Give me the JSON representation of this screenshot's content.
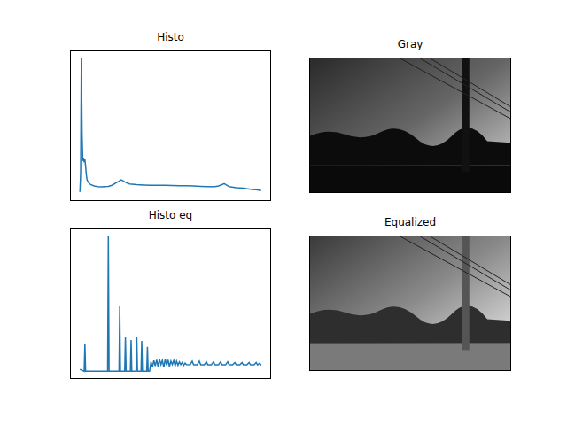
{
  "chart_data": [
    {
      "type": "line",
      "title": "Histo",
      "color": "#1f77b4",
      "tick_labels": false,
      "xlim": [
        -12.75,
        267.75
      ],
      "ylim": [
        -500,
        10500
      ],
      "xticks": [],
      "yticks": [],
      "x": [
        0,
        1,
        2,
        3,
        4,
        5,
        6,
        7,
        8,
        9,
        10,
        12,
        15,
        20,
        25,
        30,
        35,
        40,
        45,
        50,
        55,
        58,
        60,
        63,
        66,
        70,
        80,
        90,
        100,
        110,
        120,
        130,
        140,
        150,
        160,
        170,
        180,
        190,
        195,
        200,
        203,
        206,
        210,
        220,
        230,
        240,
        250,
        255
      ],
      "values": [
        100,
        1500,
        10000,
        4500,
        2400,
        2600,
        2300,
        2500,
        2000,
        1400,
        1000,
        800,
        650,
        550,
        500,
        480,
        500,
        520,
        600,
        750,
        900,
        1000,
        950,
        850,
        780,
        700,
        650,
        620,
        600,
        600,
        590,
        580,
        570,
        560,
        540,
        520,
        500,
        500,
        550,
        650,
        720,
        620,
        500,
        420,
        380,
        300,
        250,
        200
      ]
    },
    {
      "type": "image",
      "title": "Gray"
    },
    {
      "type": "line",
      "title": "Histo eq",
      "color": "#1f77b4",
      "tick_labels": false,
      "xlim": [
        -12.75,
        267.75
      ],
      "ylim": [
        -500,
        10500
      ],
      "xticks": [],
      "yticks": [],
      "x": [
        0,
        6,
        7,
        8,
        39,
        40,
        41,
        55,
        56,
        57,
        63,
        64,
        65,
        71,
        72,
        73,
        79,
        80,
        81,
        86,
        87,
        88,
        94,
        95,
        96,
        98,
        100,
        102,
        104,
        106,
        108,
        110,
        112,
        114,
        116,
        118,
        120,
        122,
        124,
        126,
        128,
        130,
        132,
        134,
        136,
        138,
        140,
        142,
        144,
        146,
        148,
        150,
        155,
        158,
        160,
        165,
        168,
        170,
        175,
        178,
        180,
        185,
        188,
        190,
        195,
        198,
        200,
        205,
        208,
        210,
        215,
        218,
        220,
        225,
        228,
        230,
        235,
        238,
        240,
        245,
        248,
        250,
        253,
        255
      ],
      "values": [
        150,
        0,
        2060,
        0,
        0,
        10000,
        0,
        0,
        4810,
        0,
        0,
        2510,
        0,
        0,
        2320,
        0,
        0,
        2510,
        0,
        0,
        2250,
        0,
        0,
        1800,
        0,
        0,
        700,
        300,
        800,
        400,
        850,
        350,
        900,
        500,
        800,
        300,
        900,
        450,
        850,
        350,
        750,
        500,
        800,
        400,
        750,
        450,
        700,
        500,
        650,
        450,
        600,
        500,
        480,
        750,
        480,
        480,
        750,
        480,
        480,
        700,
        480,
        480,
        700,
        480,
        480,
        700,
        480,
        480,
        700,
        480,
        480,
        650,
        480,
        480,
        650,
        480,
        480,
        650,
        480,
        480,
        650,
        480,
        600,
        450
      ]
    },
    {
      "type": "image",
      "title": "Equalized"
    }
  ]
}
